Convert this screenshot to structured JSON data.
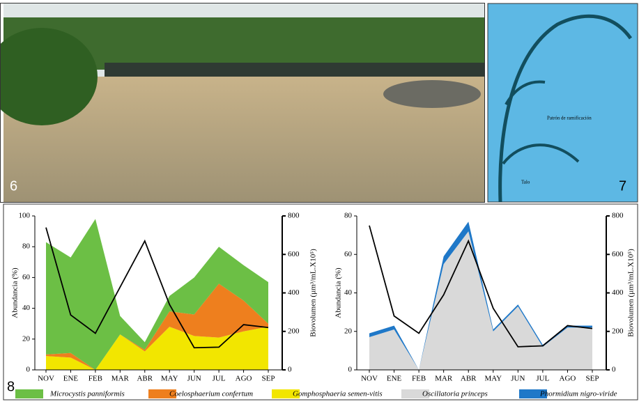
{
  "panels": [
    {
      "label": "6"
    },
    {
      "label": "7",
      "annotations": [
        "Patrón de ramificación",
        "Talo"
      ]
    },
    {
      "label": "8"
    }
  ],
  "chart_data": [
    {
      "type": "area",
      "categories": [
        "NOV",
        "ENE",
        "FEB",
        "MAR",
        "ABR",
        "MAY",
        "JUN",
        "JUL",
        "AGO",
        "SEP"
      ],
      "y_label": "Abundancia (%)",
      "y2_label": "Biovolumen (µm³/mL.X10⁵)",
      "ylim": [
        0,
        100
      ],
      "yticks": [
        0,
        20,
        40,
        60,
        80,
        100
      ],
      "y2lim": [
        0,
        800
      ],
      "y2ticks": [
        0,
        200,
        400,
        600,
        800
      ],
      "series": [
        {
          "name": "Gomphosphaeria semen-vitis",
          "color": "#f2e600",
          "values": [
            9,
            8,
            0,
            23,
            12,
            28,
            22,
            21,
            25,
            28
          ]
        },
        {
          "name": "Coelosphaerium confertum",
          "color": "#ee7f1e",
          "values": [
            1,
            3,
            0,
            0,
            1,
            10,
            14,
            35,
            20,
            2
          ]
        },
        {
          "name": "Microcystis panniformis",
          "color": "#6cbf45",
          "values": [
            73,
            62,
            98,
            12,
            5,
            10,
            24,
            24,
            23,
            27
          ]
        },
        {
          "type": "line",
          "axis": "y2",
          "color": "#000000",
          "values": [
            740,
            285,
            190,
            430,
            670,
            340,
            115,
            118,
            235,
            220
          ]
        }
      ]
    },
    {
      "type": "area",
      "categories": [
        "NOV",
        "ENE",
        "FEB",
        "MAR",
        "ABR",
        "MAY",
        "JUN",
        "JUL",
        "AGO",
        "SEP"
      ],
      "y_label": "Abundancia (%)",
      "y2_label": "Biovolumen (µm³/mL.X10⁵)",
      "ylim": [
        0,
        80
      ],
      "yticks": [
        0,
        20,
        40,
        60,
        80
      ],
      "y2lim": [
        0,
        800
      ],
      "y2ticks": [
        0,
        200,
        400,
        600,
        800
      ],
      "series": [
        {
          "name": "Oscillatoria princeps",
          "color": "#d9d9d9",
          "values": [
            17,
            21,
            0,
            55,
            72,
            20,
            33,
            12,
            22,
            22
          ]
        },
        {
          "name": "Phormidium nigro-viride",
          "color": "#1f78c8",
          "values": [
            2,
            2,
            0,
            4,
            5,
            1,
            1,
            1,
            1,
            1
          ]
        },
        {
          "type": "line",
          "axis": "y2",
          "color": "#000000",
          "values": [
            750,
            280,
            190,
            390,
            670,
            320,
            120,
            125,
            230,
            215
          ]
        }
      ]
    }
  ]
}
